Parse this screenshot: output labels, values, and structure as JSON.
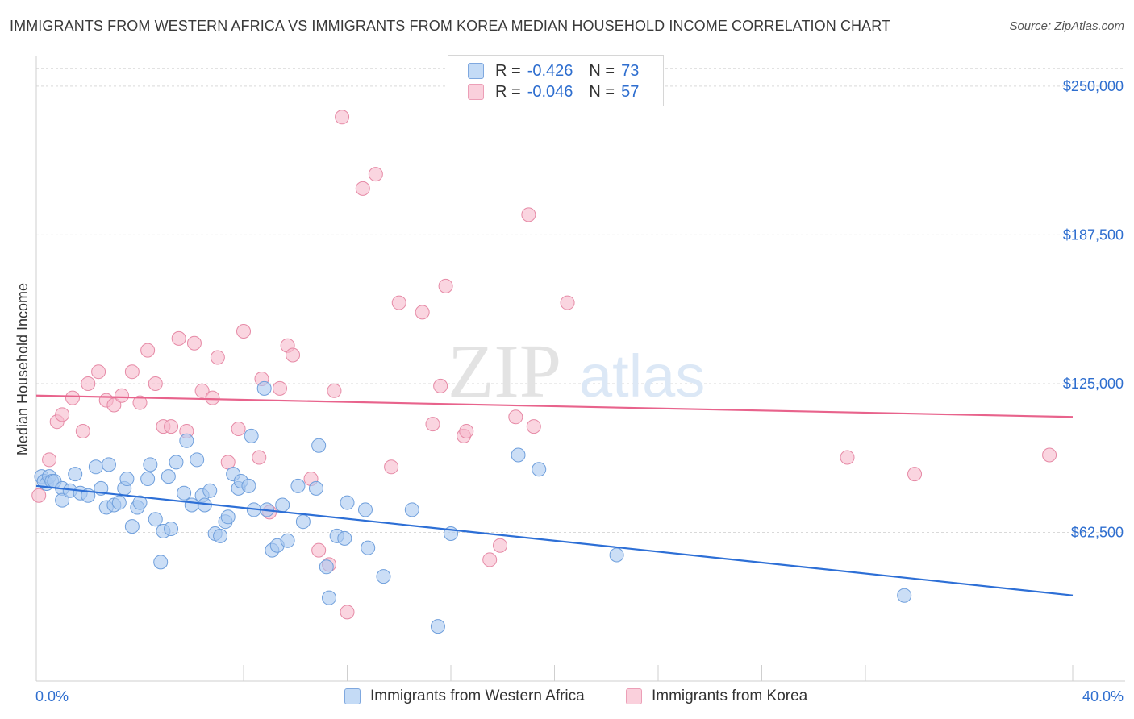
{
  "title": "IMMIGRANTS FROM WESTERN AFRICA VS IMMIGRANTS FROM KOREA MEDIAN HOUSEHOLD INCOME CORRELATION CHART",
  "source": "Source: ZipAtlas.com",
  "legend": {
    "rows": [
      {
        "r_label": "R =",
        "r_value": "-0.426",
        "n_label": "N =",
        "n_value": "73"
      },
      {
        "r_label": "R =",
        "r_value": "-0.046",
        "n_label": "N =",
        "n_value": "57"
      }
    ]
  },
  "bottom_legend": [
    "Immigrants from Western Africa",
    "Immigrants from Korea"
  ],
  "watermark": {
    "zip": "ZIP",
    "atlas": "atlas"
  },
  "colors": {
    "blue_fill": "#a9c8f0",
    "blue_stroke": "#6f9fdc",
    "blue_line": "#2d6fd6",
    "pink_fill": "#f6b9cb",
    "pink_stroke": "#e68aa6",
    "pink_line": "#e8638c",
    "axis_text": "#2e6ecf",
    "grid": "#d9d9d9"
  },
  "chart_data": {
    "type": "scatter",
    "title": "IMMIGRANTS FROM WESTERN AFRICA VS IMMIGRANTS FROM KOREA MEDIAN HOUSEHOLD INCOME CORRELATION CHART",
    "xlabel": "",
    "ylabel": "Median Household Income",
    "xlim": [
      0,
      40
    ],
    "ylim": [
      0,
      262500
    ],
    "x_tick_labels": [
      "0.0%",
      "40.0%"
    ],
    "y_ticks": [
      62500,
      125000,
      187500,
      250000
    ],
    "y_tick_labels": [
      "$62,500",
      "$125,000",
      "$187,500",
      "$250,000"
    ],
    "grid": true,
    "legend_position": "top-center",
    "series": [
      {
        "name": "Immigrants from Western Africa",
        "r": -0.426,
        "n": 73,
        "trend": {
          "x": [
            0,
            40
          ],
          "y": [
            82000,
            36000
          ]
        },
        "points": [
          [
            0.2,
            86000
          ],
          [
            0.3,
            84000
          ],
          [
            0.4,
            83000
          ],
          [
            0.5,
            86000
          ],
          [
            0.6,
            84000
          ],
          [
            0.7,
            84000
          ],
          [
            1.0,
            81000
          ],
          [
            1.0,
            76000
          ],
          [
            1.3,
            80000
          ],
          [
            1.5,
            87000
          ],
          [
            1.7,
            79000
          ],
          [
            2.0,
            78000
          ],
          [
            2.3,
            90000
          ],
          [
            2.5,
            81000
          ],
          [
            2.7,
            73000
          ],
          [
            2.8,
            91000
          ],
          [
            3.0,
            74000
          ],
          [
            3.2,
            75000
          ],
          [
            3.4,
            81000
          ],
          [
            3.5,
            85000
          ],
          [
            3.7,
            65000
          ],
          [
            3.9,
            73000
          ],
          [
            4.0,
            75000
          ],
          [
            4.3,
            85000
          ],
          [
            4.4,
            91000
          ],
          [
            4.6,
            68000
          ],
          [
            4.8,
            50000
          ],
          [
            4.9,
            63000
          ],
          [
            5.1,
            86000
          ],
          [
            5.2,
            64000
          ],
          [
            5.4,
            92000
          ],
          [
            5.7,
            79000
          ],
          [
            5.8,
            101000
          ],
          [
            6.0,
            74000
          ],
          [
            6.2,
            93000
          ],
          [
            6.4,
            78000
          ],
          [
            6.5,
            74000
          ],
          [
            6.7,
            80000
          ],
          [
            6.9,
            62000
          ],
          [
            7.1,
            61000
          ],
          [
            7.3,
            67000
          ],
          [
            7.4,
            69000
          ],
          [
            7.6,
            87000
          ],
          [
            7.8,
            81000
          ],
          [
            7.9,
            84000
          ],
          [
            8.2,
            82000
          ],
          [
            8.3,
            103000
          ],
          [
            8.4,
            72000
          ],
          [
            8.8,
            123000
          ],
          [
            8.9,
            72000
          ],
          [
            9.1,
            55000
          ],
          [
            9.3,
            57000
          ],
          [
            9.5,
            74000
          ],
          [
            9.7,
            59000
          ],
          [
            10.1,
            82000
          ],
          [
            10.3,
            67000
          ],
          [
            10.8,
            81000
          ],
          [
            10.9,
            99000
          ],
          [
            11.2,
            48000
          ],
          [
            11.3,
            35000
          ],
          [
            11.6,
            61000
          ],
          [
            11.9,
            60000
          ],
          [
            12.0,
            75000
          ],
          [
            12.7,
            72000
          ],
          [
            12.8,
            56000
          ],
          [
            13.4,
            44000
          ],
          [
            14.5,
            72000
          ],
          [
            15.5,
            23000
          ],
          [
            16.0,
            62000
          ],
          [
            18.6,
            95000
          ],
          [
            19.4,
            89000
          ],
          [
            22.4,
            53000
          ],
          [
            33.5,
            36000
          ]
        ]
      },
      {
        "name": "Immigrants from Korea",
        "r": -0.046,
        "n": 57,
        "trend": {
          "x": [
            0,
            40
          ],
          "y": [
            120000,
            111000
          ]
        },
        "points": [
          [
            0.1,
            78000
          ],
          [
            0.5,
            93000
          ],
          [
            0.8,
            109000
          ],
          [
            1.0,
            112000
          ],
          [
            1.4,
            119000
          ],
          [
            1.8,
            105000
          ],
          [
            2.0,
            125000
          ],
          [
            2.4,
            130000
          ],
          [
            2.7,
            118000
          ],
          [
            3.0,
            116000
          ],
          [
            3.3,
            120000
          ],
          [
            3.7,
            130000
          ],
          [
            4.0,
            117000
          ],
          [
            4.3,
            139000
          ],
          [
            4.6,
            125000
          ],
          [
            4.9,
            107000
          ],
          [
            5.2,
            107000
          ],
          [
            5.5,
            144000
          ],
          [
            5.8,
            105000
          ],
          [
            6.1,
            142000
          ],
          [
            6.4,
            122000
          ],
          [
            6.8,
            119000
          ],
          [
            7.0,
            136000
          ],
          [
            7.4,
            92000
          ],
          [
            7.8,
            106000
          ],
          [
            8.0,
            147000
          ],
          [
            8.6,
            94000
          ],
          [
            8.7,
            127000
          ],
          [
            9.0,
            71000
          ],
          [
            9.4,
            123000
          ],
          [
            9.7,
            141000
          ],
          [
            9.9,
            137000
          ],
          [
            10.6,
            85000
          ],
          [
            10.9,
            55000
          ],
          [
            11.3,
            49000
          ],
          [
            11.5,
            122000
          ],
          [
            11.8,
            237000
          ],
          [
            12.0,
            29000
          ],
          [
            12.6,
            207000
          ],
          [
            13.1,
            213000
          ],
          [
            13.7,
            90000
          ],
          [
            14.0,
            159000
          ],
          [
            14.9,
            155000
          ],
          [
            15.3,
            108000
          ],
          [
            15.6,
            124000
          ],
          [
            15.8,
            166000
          ],
          [
            16.5,
            103000
          ],
          [
            16.6,
            105000
          ],
          [
            17.5,
            51000
          ],
          [
            17.9,
            57000
          ],
          [
            18.5,
            111000
          ],
          [
            19.0,
            196000
          ],
          [
            19.2,
            107000
          ],
          [
            20.5,
            159000
          ],
          [
            31.3,
            94000
          ],
          [
            33.9,
            87000
          ],
          [
            39.1,
            95000
          ]
        ]
      }
    ]
  }
}
